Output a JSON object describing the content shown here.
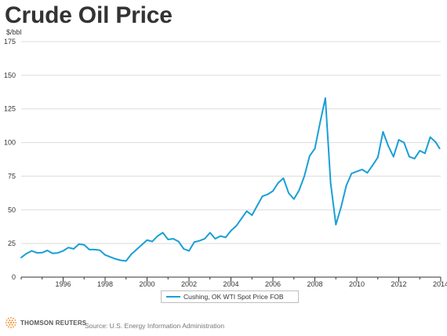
{
  "title": "Crude Oil Price",
  "colors": {
    "series": "#1a9fd6",
    "grid": "#dcdcdc",
    "axis": "#333333",
    "logo": "#f28c28"
  },
  "brand": {
    "logo_text": "THOMSON REUTERS",
    "logo_icon": "reuters-dot-ring-icon"
  },
  "source": "Source: U.S. Energy Information Administration",
  "chart_data": {
    "type": "line",
    "ylabel": "$/bbl",
    "xlabel": "",
    "ylim": [
      0,
      175
    ],
    "xlim": [
      1994.0,
      2014.0
    ],
    "y_ticks": [
      "0",
      "25",
      "50",
      "75",
      "100",
      "125",
      "150",
      "175"
    ],
    "x_ticks": [
      "1996",
      "1998",
      "2000",
      "2002",
      "2004",
      "2006",
      "2008",
      "2010",
      "2012",
      "2014"
    ],
    "grid": "horizontal",
    "legend_position": "bottom-center",
    "series": [
      {
        "name": "Cushing, OK WTI Spot Price FOB",
        "x": [
          1994.0,
          1994.25,
          1994.5,
          1994.75,
          1995.0,
          1995.25,
          1995.5,
          1995.75,
          1996.0,
          1996.25,
          1996.5,
          1996.75,
          1997.0,
          1997.25,
          1997.5,
          1997.75,
          1998.0,
          1998.25,
          1998.5,
          1998.75,
          1999.0,
          1999.25,
          1999.5,
          1999.75,
          2000.0,
          2000.25,
          2000.5,
          2000.75,
          2001.0,
          2001.25,
          2001.5,
          2001.75,
          2002.0,
          2002.25,
          2002.5,
          2002.75,
          2003.0,
          2003.25,
          2003.5,
          2003.75,
          2004.0,
          2004.25,
          2004.5,
          2004.75,
          2005.0,
          2005.25,
          2005.5,
          2005.75,
          2006.0,
          2006.25,
          2006.5,
          2006.75,
          2007.0,
          2007.25,
          2007.5,
          2007.75,
          2008.0,
          2008.25,
          2008.5,
          2008.75,
          2009.0,
          2009.25,
          2009.5,
          2009.75,
          2010.0,
          2010.25,
          2010.5,
          2010.75,
          2011.0,
          2011.25,
          2011.5,
          2011.75,
          2012.0,
          2012.25,
          2012.5,
          2012.75,
          2013.0,
          2013.25,
          2013.5,
          2013.75,
          2013.95
        ],
        "y": [
          14.5,
          17.5,
          19.5,
          18.0,
          18.2,
          19.8,
          17.6,
          18.0,
          19.5,
          22.0,
          21.0,
          24.5,
          24.0,
          20.5,
          20.5,
          20.0,
          16.5,
          15.0,
          13.5,
          12.5,
          12.0,
          17.0,
          20.5,
          24.0,
          27.5,
          26.5,
          30.5,
          33.0,
          28.0,
          28.5,
          26.5,
          21.0,
          19.5,
          26.0,
          27.0,
          28.5,
          33.0,
          28.5,
          30.5,
          29.5,
          34.5,
          38.0,
          43.5,
          49.0,
          46.0,
          53.0,
          60.0,
          61.5,
          64.0,
          70.0,
          73.5,
          62.5,
          58.0,
          64.5,
          75.0,
          90.0,
          95.5,
          115.0,
          133.0,
          70.0,
          39.0,
          52.0,
          68.0,
          77.0,
          78.5,
          80.0,
          77.5,
          83.0,
          89.0,
          108.0,
          97.5,
          89.5,
          102.0,
          100.0,
          89.5,
          88.0,
          94.0,
          92.0,
          104.0,
          100.5,
          95.5
        ]
      }
    ]
  }
}
